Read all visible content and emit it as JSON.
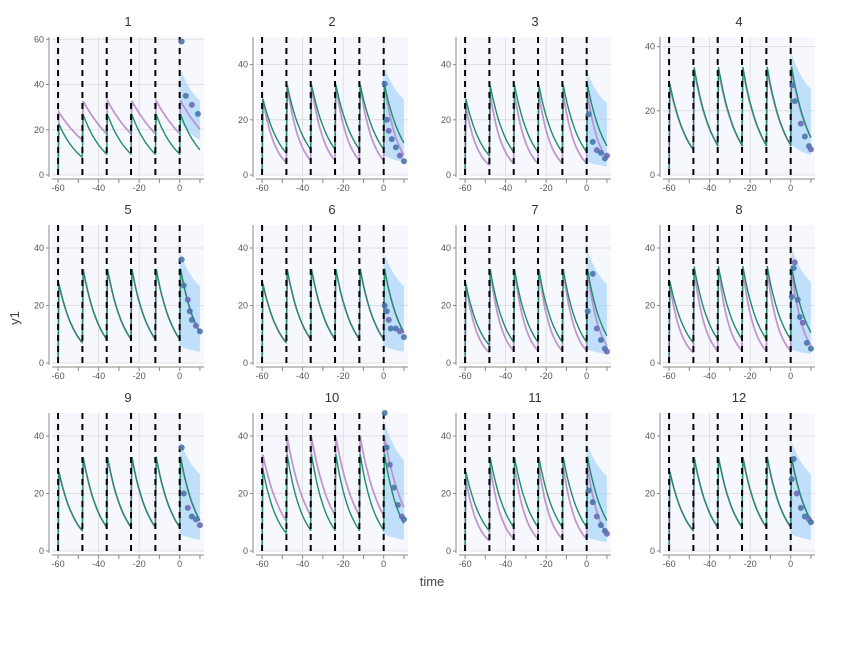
{
  "figure": {
    "xlabel": "time",
    "ylabel": "y1"
  },
  "colors": {
    "background": "#ffffff",
    "panel_shade": "#f7f8fe",
    "grid": "#d9d9d9",
    "axis": "#888888",
    "dose_line": "#000000",
    "observed_line": "#b98ccb",
    "predicted_line": "#1f8c6b",
    "interval_fill": "#a8d4f8",
    "point": "#4a76a8",
    "point_alt": "#6e6ab5"
  },
  "chart_data": {
    "type": "line",
    "xlim": [
      -63,
      12
    ],
    "xticks": [
      -60,
      -40,
      -20,
      0
    ],
    "dose_times": [
      -60,
      -48,
      -36,
      -24,
      -12,
      0
    ],
    "panels": [
      {
        "title": "1",
        "ylim": [
          0,
          61
        ],
        "yticks": [
          0,
          20,
          40,
          60
        ],
        "purple_peak": 33,
        "green_peak": 27,
        "purple_trough": 18,
        "green_trough": 9,
        "band": [
          20,
          48
        ],
        "points": [
          [
            1,
            59
          ],
          [
            3,
            35
          ],
          [
            6,
            31
          ],
          [
            9,
            27
          ]
        ]
      },
      {
        "title": "2",
        "ylim": [
          0,
          50
        ],
        "yticks": [
          0,
          20,
          40
        ],
        "purple_peak": 33,
        "green_peak": 33,
        "purple_trough": 5,
        "green_trough": 9,
        "band": [
          6,
          40
        ],
        "points": [
          [
            0.5,
            33
          ],
          [
            1.5,
            20
          ],
          [
            2.5,
            16
          ],
          [
            4,
            13
          ],
          [
            6,
            10
          ],
          [
            8,
            7
          ],
          [
            10,
            5
          ]
        ]
      },
      {
        "title": "3",
        "ylim": [
          0,
          50
        ],
        "yticks": [
          0,
          20,
          40
        ],
        "purple_peak": 30,
        "green_peak": 33,
        "purple_trough": 4,
        "green_trough": 8,
        "band": [
          4,
          38
        ],
        "points": [
          [
            1,
            22
          ],
          [
            3,
            12
          ],
          [
            5,
            9
          ],
          [
            7,
            8
          ],
          [
            9,
            6
          ],
          [
            10,
            7
          ]
        ]
      },
      {
        "title": "4",
        "ylim": [
          0,
          43
        ],
        "yticks": [
          0,
          20,
          40
        ],
        "purple_peak": 33,
        "green_peak": 34,
        "purple_trough": 9,
        "green_trough": 9,
        "band": [
          8,
          39
        ],
        "points": [
          [
            1,
            28
          ],
          [
            2,
            23
          ],
          [
            5,
            16
          ],
          [
            7,
            12
          ],
          [
            9,
            9
          ],
          [
            10,
            8
          ]
        ]
      },
      {
        "title": "5",
        "ylim": [
          0,
          48
        ],
        "yticks": [
          0,
          20,
          40
        ],
        "purple_peak": 33,
        "green_peak": 33,
        "purple_trough": 8,
        "green_trough": 8,
        "band": [
          5,
          39
        ],
        "points": [
          [
            1,
            36
          ],
          [
            2,
            27
          ],
          [
            4,
            22
          ],
          [
            5,
            18
          ],
          [
            6,
            15
          ],
          [
            8,
            13
          ],
          [
            10,
            11
          ]
        ]
      },
      {
        "title": "6",
        "ylim": [
          0,
          48
        ],
        "yticks": [
          0,
          20,
          40
        ],
        "purple_peak": 33,
        "green_peak": 33,
        "purple_trough": 8,
        "green_trough": 8,
        "band": [
          5,
          39
        ],
        "points": [
          [
            0.5,
            20
          ],
          [
            1.5,
            18
          ],
          [
            2.5,
            15
          ],
          [
            3.5,
            12
          ],
          [
            6,
            12
          ],
          [
            8,
            11
          ],
          [
            10,
            9
          ]
        ]
      },
      {
        "title": "7",
        "ylim": [
          0,
          48
        ],
        "yticks": [
          0,
          20,
          40
        ],
        "purple_peak": 33,
        "green_peak": 33,
        "purple_trough": 4,
        "green_trough": 7,
        "band": [
          4,
          40
        ],
        "points": [
          [
            0.5,
            18
          ],
          [
            3,
            31
          ],
          [
            5,
            12
          ],
          [
            7,
            8
          ],
          [
            9,
            5
          ],
          [
            10,
            4
          ]
        ]
      },
      {
        "title": "8",
        "ylim": [
          0,
          48
        ],
        "yticks": [
          0,
          20,
          40
        ],
        "purple_peak": 33,
        "green_peak": 34,
        "purple_trough": 4,
        "green_trough": 8,
        "band": [
          4,
          41
        ],
        "points": [
          [
            0.5,
            23
          ],
          [
            1.5,
            33
          ],
          [
            2,
            35
          ],
          [
            3.5,
            22
          ],
          [
            4.5,
            16
          ],
          [
            6,
            14
          ],
          [
            8,
            7
          ],
          [
            10,
            5
          ]
        ]
      },
      {
        "title": "9",
        "ylim": [
          0,
          48
        ],
        "yticks": [
          0,
          20,
          40
        ],
        "purple_peak": 33,
        "green_peak": 33,
        "purple_trough": 8,
        "green_trough": 8,
        "band": [
          5,
          39
        ],
        "points": [
          [
            1,
            36
          ],
          [
            2,
            20
          ],
          [
            4,
            15
          ],
          [
            6,
            12
          ],
          [
            8,
            11
          ],
          [
            10,
            9
          ]
        ]
      },
      {
        "title": "10",
        "ylim": [
          0,
          48
        ],
        "yticks": [
          0,
          20,
          40
        ],
        "purple_peak": 40,
        "green_peak": 34,
        "purple_trough": 12,
        "green_trough": 7,
        "band": [
          5,
          46
        ],
        "points": [
          [
            0.5,
            48
          ],
          [
            1.5,
            36
          ],
          [
            3,
            30
          ],
          [
            5,
            22
          ],
          [
            7,
            16
          ],
          [
            9,
            12
          ],
          [
            10,
            11
          ]
        ]
      },
      {
        "title": "11",
        "ylim": [
          0,
          48
        ],
        "yticks": [
          0,
          20,
          40
        ],
        "purple_peak": 30,
        "green_peak": 33,
        "purple_trough": 4,
        "green_trough": 8,
        "band": [
          4,
          38
        ],
        "points": [
          [
            1,
            21
          ],
          [
            3,
            17
          ],
          [
            5,
            12
          ],
          [
            7,
            9
          ],
          [
            9,
            7
          ],
          [
            10,
            6
          ]
        ]
      },
      {
        "title": "12",
        "ylim": [
          0,
          48
        ],
        "yticks": [
          0,
          20,
          40
        ],
        "purple_peak": 33,
        "green_peak": 33,
        "purple_trough": 8,
        "green_trough": 8,
        "band": [
          5,
          39
        ],
        "points": [
          [
            0.5,
            25
          ],
          [
            1.5,
            32
          ],
          [
            3,
            20
          ],
          [
            5,
            15
          ],
          [
            7,
            12
          ],
          [
            9,
            11
          ],
          [
            10,
            10
          ]
        ]
      }
    ]
  }
}
